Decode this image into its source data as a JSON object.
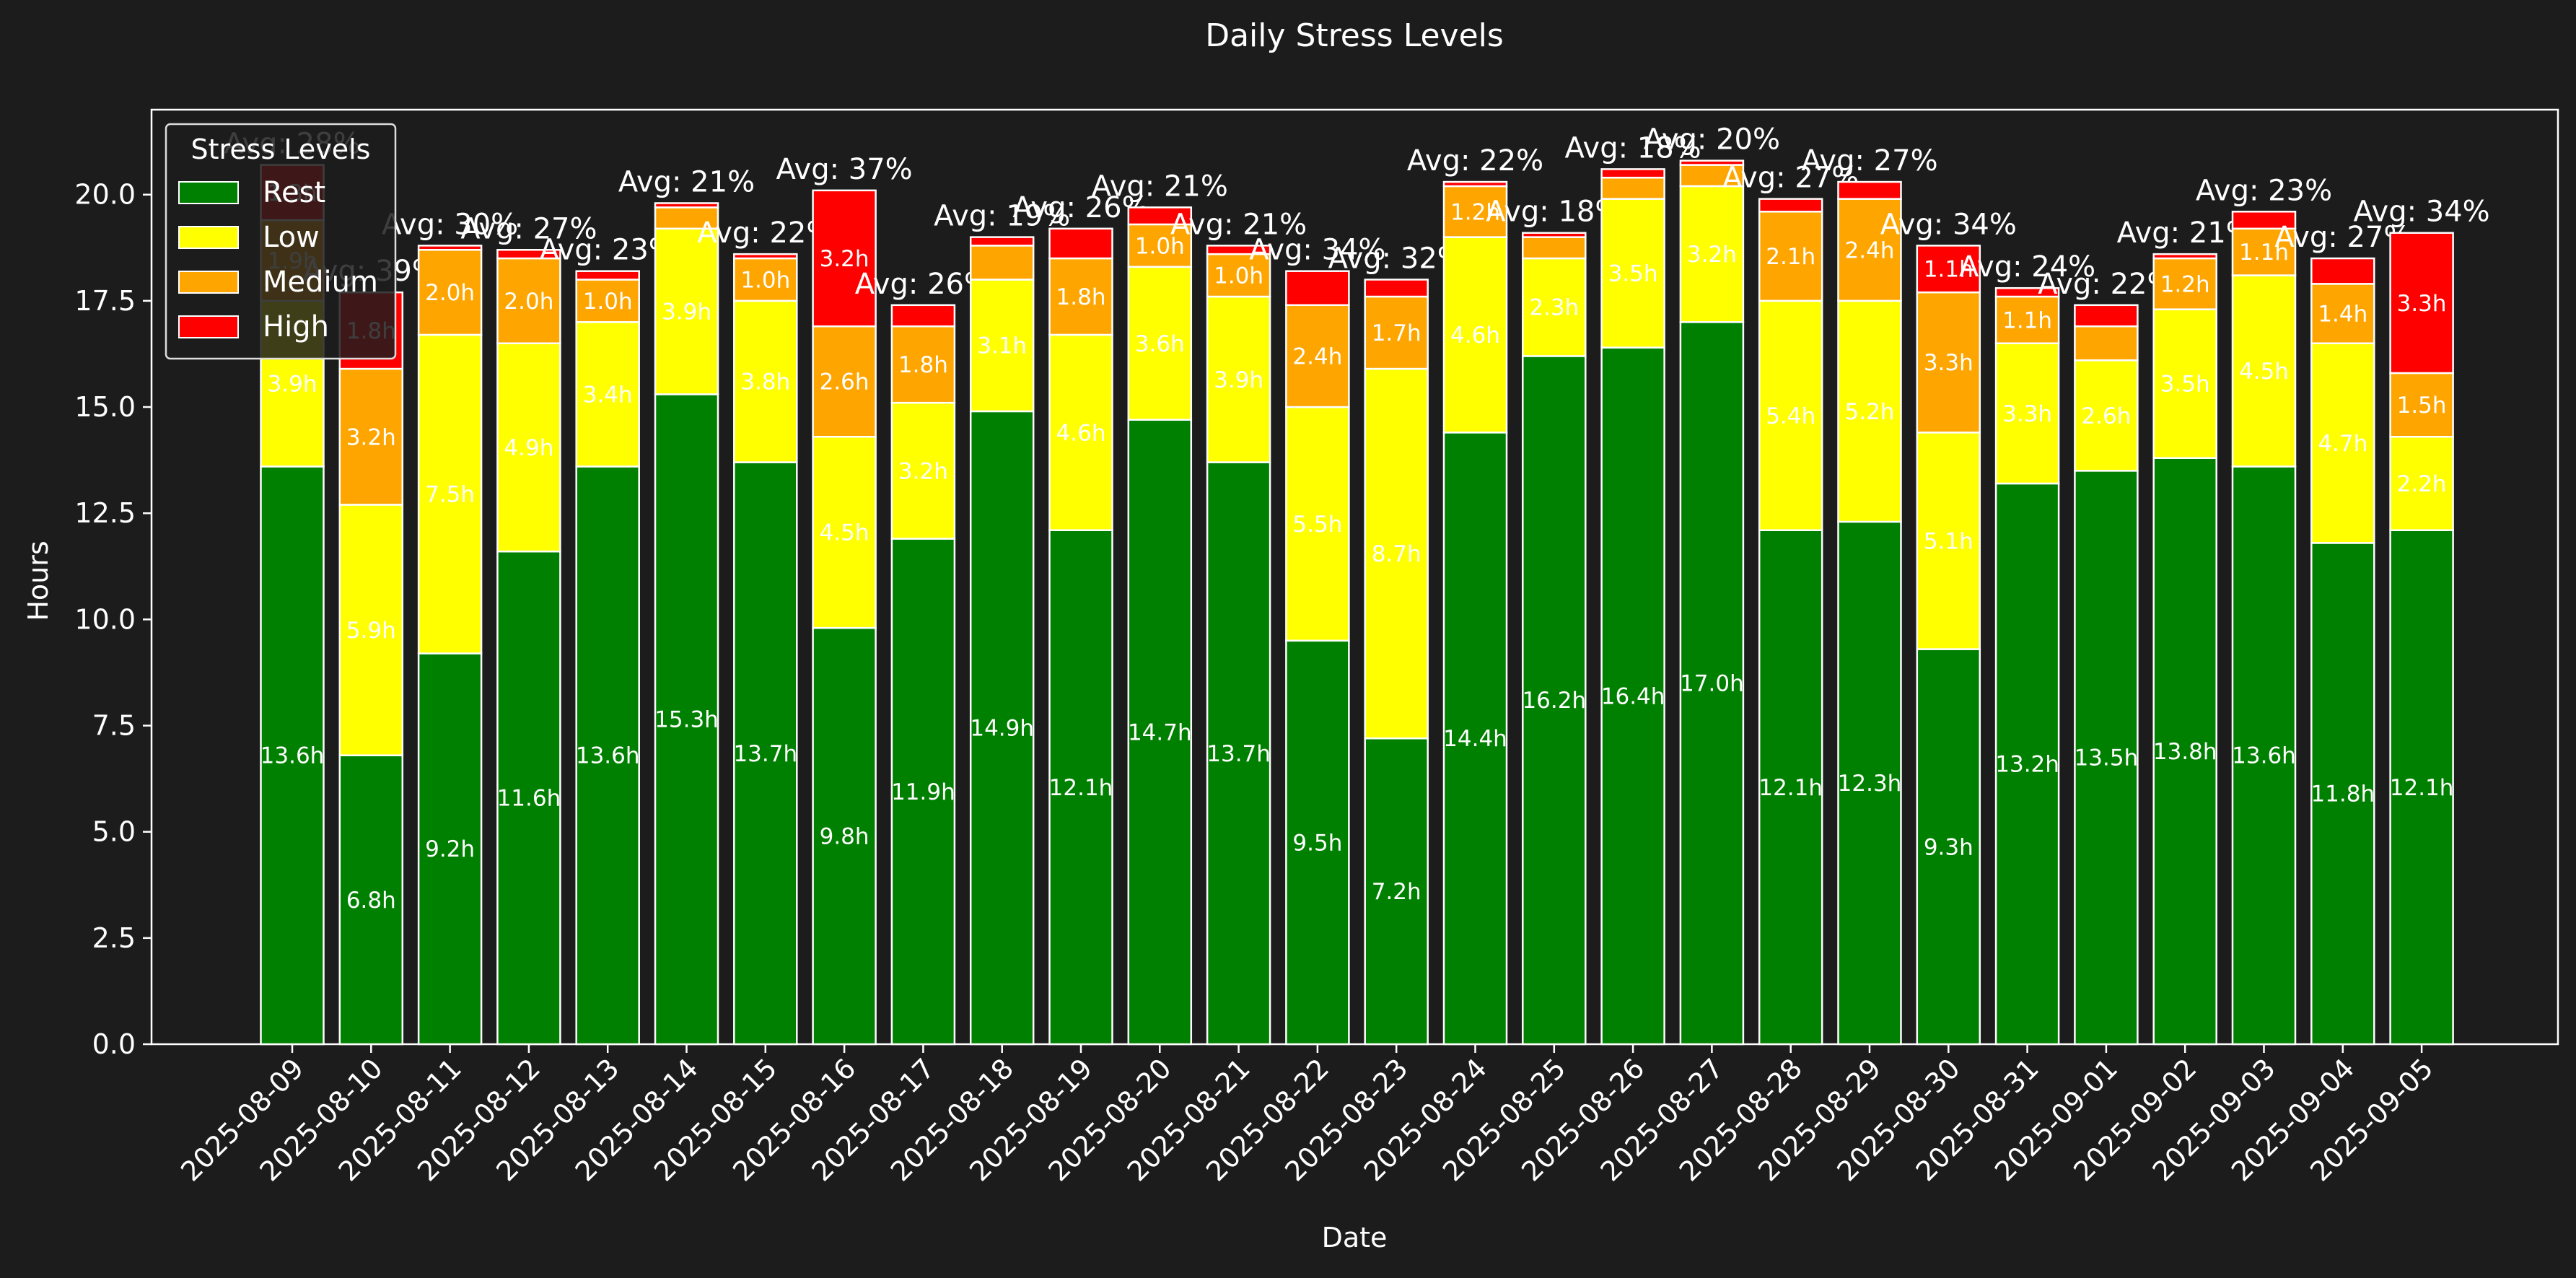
{
  "chart_data": {
    "type": "bar",
    "stacked": true,
    "title": "Daily Stress Levels",
    "xlabel": "Date",
    "ylabel": "Hours",
    "ylim": [
      0,
      22
    ],
    "yticks": [
      "0.0",
      "2.5",
      "5.0",
      "7.5",
      "10.0",
      "12.5",
      "15.0",
      "17.5",
      "20.0"
    ],
    "legend": {
      "title": "Stress Levels",
      "placement": "top-left"
    },
    "categories": [
      "2025-08-09",
      "2025-08-10",
      "2025-08-11",
      "2025-08-12",
      "2025-08-13",
      "2025-08-14",
      "2025-08-15",
      "2025-08-16",
      "2025-08-17",
      "2025-08-18",
      "2025-08-19",
      "2025-08-20",
      "2025-08-21",
      "2025-08-22",
      "2025-08-23",
      "2025-08-24",
      "2025-08-25",
      "2025-08-26",
      "2025-08-27",
      "2025-08-28",
      "2025-08-29",
      "2025-08-30",
      "2025-08-31",
      "2025-09-01",
      "2025-09-02",
      "2025-09-03",
      "2025-09-04",
      "2025-09-05"
    ],
    "series": [
      {
        "name": "Rest",
        "color": "#008000",
        "values": [
          13.6,
          6.8,
          9.2,
          11.6,
          13.6,
          15.3,
          13.7,
          9.8,
          11.9,
          14.9,
          12.1,
          14.7,
          13.7,
          9.5,
          7.2,
          14.4,
          16.2,
          16.4,
          17.0,
          12.1,
          12.3,
          9.3,
          13.2,
          13.5,
          13.8,
          13.6,
          11.8,
          12.1
        ]
      },
      {
        "name": "Low",
        "color": "#ffff00",
        "values": [
          3.9,
          5.9,
          7.5,
          4.9,
          3.4,
          3.9,
          3.8,
          4.5,
          3.2,
          3.1,
          4.6,
          3.6,
          3.9,
          5.5,
          8.7,
          4.6,
          2.3,
          3.5,
          3.2,
          5.4,
          5.2,
          5.1,
          3.3,
          2.6,
          3.5,
          4.5,
          4.7,
          2.2
        ]
      },
      {
        "name": "Medium",
        "color": "#ffa500",
        "values": [
          1.9,
          3.2,
          2.0,
          2.0,
          1.0,
          0.5,
          1.0,
          2.6,
          1.8,
          0.8,
          1.8,
          1.0,
          1.0,
          2.4,
          1.7,
          1.2,
          0.5,
          0.5,
          0.5,
          2.1,
          2.4,
          3.3,
          1.1,
          0.8,
          1.2,
          1.1,
          1.4,
          1.5
        ]
      },
      {
        "name": "High",
        "color": "#ff0000",
        "values": [
          1.3,
          1.8,
          0.1,
          0.2,
          0.2,
          0.1,
          0.1,
          3.2,
          0.5,
          0.2,
          0.7,
          0.4,
          0.2,
          0.8,
          0.4,
          0.1,
          0.1,
          0.2,
          0.1,
          0.3,
          0.4,
          1.1,
          0.2,
          0.5,
          0.1,
          0.4,
          0.6,
          3.3
        ]
      }
    ],
    "annotations": [
      "Avg: 28%",
      "Avg: 39%",
      "Avg: 30%",
      "Avg: 27%",
      "Avg: 23%",
      "Avg: 21%",
      "Avg: 22%",
      "Avg: 37%",
      "Avg: 26%",
      "Avg: 19%",
      "Avg: 26%",
      "Avg: 21%",
      "Avg: 21%",
      "Avg: 34%",
      "Avg: 32%",
      "Avg: 22%",
      "Avg: 18%",
      "Avg: 18%",
      "Avg: 20%",
      "Avg: 27%",
      "Avg: 27%",
      "Avg: 34%",
      "Avg: 24%",
      "Avg: 22%",
      "Avg: 21%",
      "Avg: 23%",
      "Avg: 27%",
      "Avg: 34%"
    ],
    "grid": false
  },
  "colors": {
    "background": "#1c1c1c",
    "axes": "#ffffff",
    "bar_edge": "#ffffff"
  }
}
